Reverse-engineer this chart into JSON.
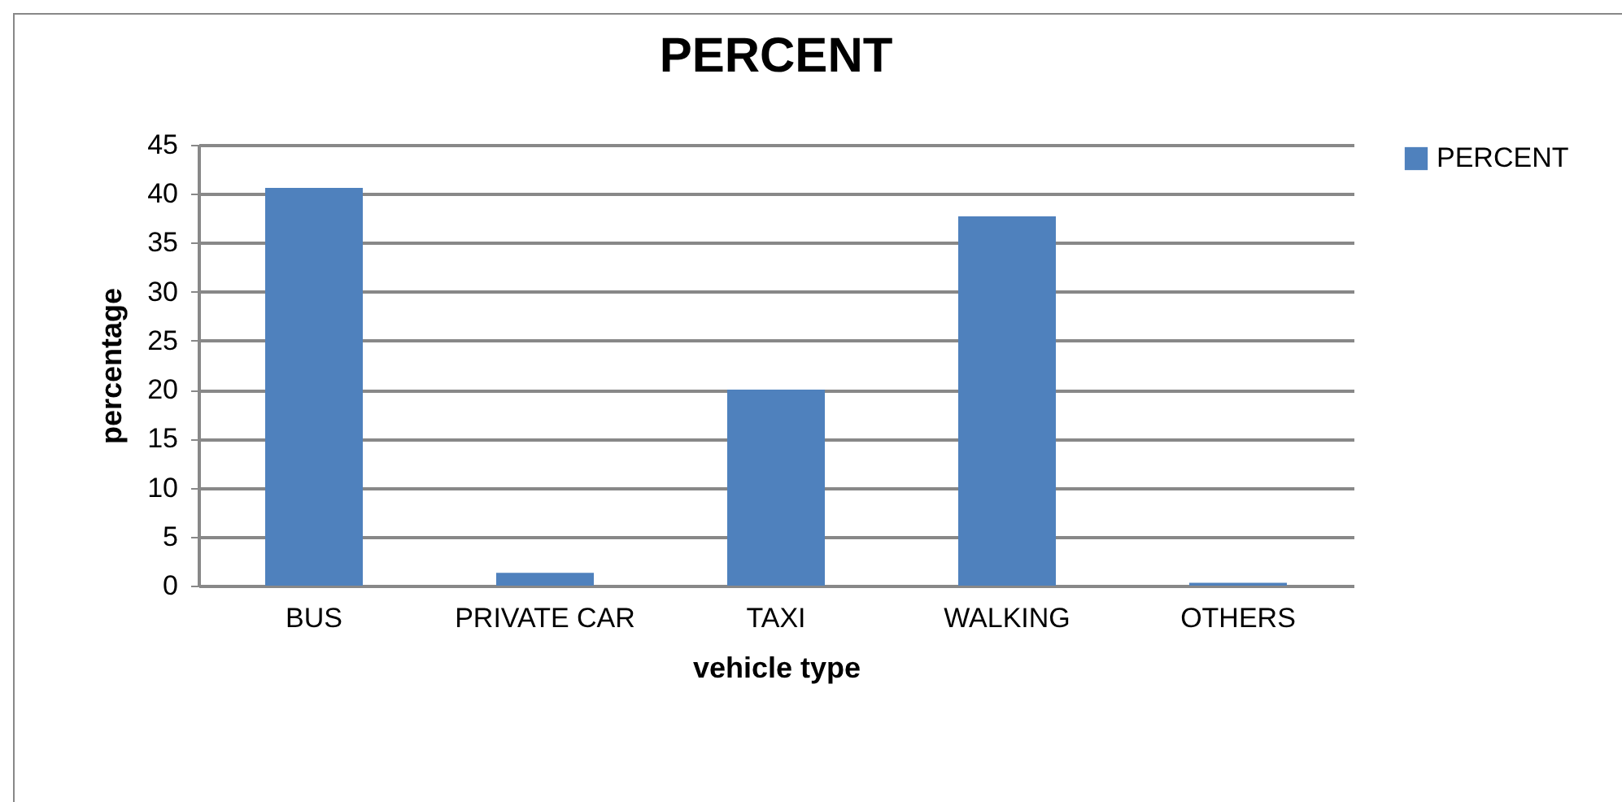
{
  "chart_data": {
    "type": "bar",
    "title": "PERCENT",
    "xlabel": "vehicle type",
    "ylabel": "percentage",
    "categories": [
      "BUS",
      "PRIVATE CAR",
      "TAXI",
      "WALKING",
      "OTHERS"
    ],
    "series": [
      {
        "name": "PERCENT",
        "color": "#4f81bd",
        "values": [
          40.6,
          1.3,
          20,
          37.7,
          0.3
        ]
      }
    ],
    "ylim": [
      0,
      45
    ],
    "yticks": [
      0,
      5,
      10,
      15,
      20,
      25,
      30,
      35,
      40,
      45
    ],
    "grid": "y",
    "legend": "right"
  }
}
